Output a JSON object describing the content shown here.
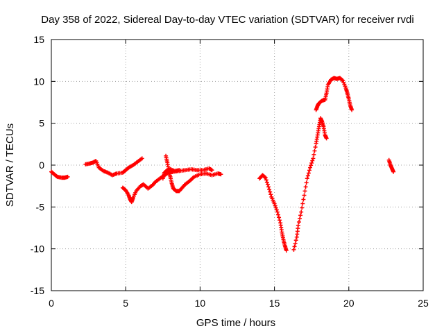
{
  "chart_data": {
    "type": "scatter",
    "title": "Day 358 of 2022, Sidereal Day-to-day VTEC variation (SDTVAR) for receiver rvdi",
    "xlabel": "GPS time / hours",
    "ylabel": "SDTVAR / TECUs",
    "xlim": [
      0,
      25
    ],
    "ylim": [
      -15,
      15
    ],
    "xticks": [
      0,
      5,
      10,
      15,
      20,
      25
    ],
    "yticks": [
      -15,
      -10,
      -5,
      0,
      5,
      10,
      15
    ],
    "x_tick_labels": [
      "0",
      "5",
      "10",
      "15",
      "20",
      "25"
    ],
    "y_tick_labels": [
      "-15",
      "-10",
      "-5",
      "0",
      "5",
      "10",
      "15"
    ],
    "grid": true,
    "marker": "plus",
    "marker_color": "#ff0000",
    "series": [
      {
        "points": [
          [
            0.0,
            -0.8
          ],
          [
            0.2,
            -1.1
          ],
          [
            0.4,
            -1.4
          ],
          [
            0.7,
            -1.5
          ],
          [
            0.9,
            -1.5
          ],
          [
            1.1,
            -1.4
          ]
        ]
      },
      {
        "points": [
          [
            2.3,
            0.1
          ],
          [
            2.6,
            0.2
          ],
          [
            2.8,
            0.3
          ],
          [
            3.0,
            0.5
          ],
          [
            3.2,
            -0.3
          ],
          [
            3.5,
            -0.7
          ],
          [
            3.8,
            -0.9
          ],
          [
            4.1,
            -1.2
          ],
          [
            4.4,
            -1.0
          ],
          [
            4.8,
            -0.9
          ],
          [
            5.0,
            -0.6
          ],
          [
            5.2,
            -0.3
          ],
          [
            5.5,
            0.0
          ],
          [
            5.8,
            0.4
          ],
          [
            6.1,
            0.8
          ]
        ]
      },
      {
        "points": [
          [
            4.8,
            -2.7
          ],
          [
            5.0,
            -3.0
          ],
          [
            5.2,
            -3.6
          ],
          [
            5.3,
            -4.1
          ],
          [
            5.4,
            -4.4
          ],
          [
            5.5,
            -3.9
          ],
          [
            5.7,
            -3.1
          ],
          [
            6.0,
            -2.5
          ],
          [
            6.2,
            -2.3
          ],
          [
            6.5,
            -2.8
          ],
          [
            6.8,
            -2.4
          ],
          [
            7.0,
            -2.0
          ],
          [
            7.3,
            -1.6
          ],
          [
            7.6,
            -1.2
          ],
          [
            7.9,
            -0.9
          ],
          [
            8.2,
            -0.8
          ],
          [
            8.6,
            -0.7
          ],
          [
            9.0,
            -0.6
          ],
          [
            9.4,
            -0.5
          ],
          [
            9.8,
            -0.6
          ],
          [
            10.2,
            -0.6
          ],
          [
            10.6,
            -0.4
          ],
          [
            10.8,
            -0.6
          ]
        ]
      },
      {
        "points": [
          [
            7.7,
            1.1
          ],
          [
            7.8,
            0.3
          ],
          [
            7.9,
            -0.7
          ],
          [
            8.0,
            -1.4
          ],
          [
            8.1,
            -2.2
          ],
          [
            8.2,
            -2.8
          ],
          [
            8.4,
            -3.1
          ],
          [
            8.6,
            -3.1
          ],
          [
            8.8,
            -2.7
          ],
          [
            9.0,
            -2.3
          ],
          [
            9.3,
            -1.9
          ],
          [
            9.6,
            -1.4
          ],
          [
            10.0,
            -1.1
          ],
          [
            10.4,
            -1.0
          ],
          [
            10.8,
            -1.2
          ],
          [
            11.2,
            -1.0
          ],
          [
            11.4,
            -1.1
          ]
        ]
      },
      {
        "points": [
          [
            7.5,
            -1.6
          ],
          [
            7.6,
            -0.9
          ],
          [
            7.8,
            -0.6
          ],
          [
            8.0,
            -0.5
          ],
          [
            8.3,
            -0.7
          ],
          [
            8.6,
            -0.6
          ]
        ]
      },
      {
        "points": [
          [
            14.0,
            -1.6
          ],
          [
            14.2,
            -1.2
          ],
          [
            14.4,
            -1.5
          ],
          [
            14.6,
            -2.6
          ],
          [
            14.8,
            -3.8
          ],
          [
            15.0,
            -4.6
          ],
          [
            15.2,
            -5.6
          ],
          [
            15.4,
            -6.9
          ],
          [
            15.5,
            -8.0
          ],
          [
            15.6,
            -8.9
          ],
          [
            15.7,
            -9.6
          ],
          [
            15.8,
            -10.2
          ]
        ]
      },
      {
        "points": [
          [
            16.3,
            -10.1
          ],
          [
            16.5,
            -8.6
          ],
          [
            16.6,
            -7.2
          ],
          [
            16.8,
            -5.6
          ],
          [
            17.0,
            -3.6
          ],
          [
            17.2,
            -1.6
          ],
          [
            17.4,
            -0.3
          ],
          [
            17.6,
            0.8
          ],
          [
            17.8,
            2.6
          ],
          [
            17.9,
            3.6
          ],
          [
            18.0,
            4.6
          ],
          [
            18.1,
            5.6
          ],
          [
            18.2,
            5.2
          ],
          [
            18.3,
            4.6
          ],
          [
            18.4,
            3.6
          ],
          [
            18.5,
            3.2
          ]
        ]
      },
      {
        "points": [
          [
            17.8,
            6.6
          ],
          [
            17.9,
            7.1
          ],
          [
            18.0,
            7.4
          ],
          [
            18.2,
            7.7
          ],
          [
            18.4,
            7.8
          ],
          [
            18.5,
            8.6
          ],
          [
            18.6,
            9.6
          ],
          [
            18.8,
            10.2
          ],
          [
            19.0,
            10.4
          ],
          [
            19.2,
            10.3
          ],
          [
            19.4,
            10.4
          ],
          [
            19.6,
            10.1
          ],
          [
            19.8,
            9.2
          ],
          [
            19.9,
            8.6
          ],
          [
            20.0,
            7.9
          ],
          [
            20.1,
            7.1
          ],
          [
            20.2,
            6.6
          ]
        ]
      },
      {
        "points": [
          [
            22.7,
            0.6
          ],
          [
            22.8,
            0.0
          ],
          [
            22.9,
            -0.4
          ],
          [
            23.0,
            -0.8
          ]
        ]
      }
    ]
  }
}
